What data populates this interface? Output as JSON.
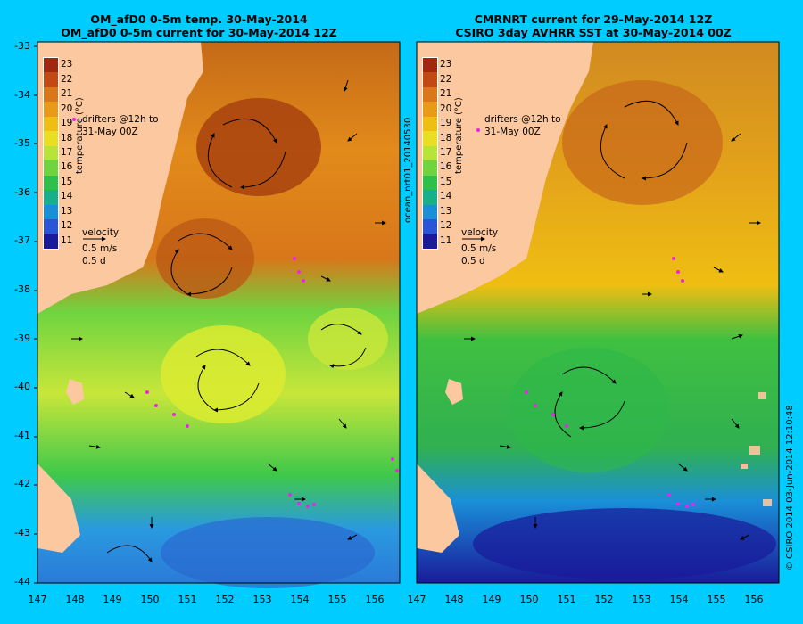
{
  "panels": [
    {
      "title_line1": "OM_afD0 0-5m temp. 30-May-2014",
      "title_line2": "OM_afD0 0-5m current for 30-May-2014 12Z",
      "side_label": ""
    },
    {
      "title_line1": "CMRNRT current for 29-May-2014 12Z",
      "title_line2": "CSIRO 3day AVHRR SST at 30-May-2014 00Z",
      "side_label": "ocean_nrt01_20140530"
    }
  ],
  "y_axis_labels": [
    "-33",
    "-34",
    "-35",
    "-36",
    "-37",
    "-38",
    "-39",
    "-40",
    "-41",
    "-42",
    "-43",
    "-44"
  ],
  "x_axis_labels": [
    "147",
    "148",
    "149",
    "150",
    "151",
    "152",
    "153",
    "154",
    "155",
    "156"
  ],
  "colorbar": {
    "ticks": [
      "23",
      "22",
      "21",
      "20",
      "19",
      "18",
      "17",
      "16",
      "15",
      "14",
      "13",
      "12",
      "11"
    ],
    "label": "temperature (°C)",
    "colors": [
      "#a0280f",
      "#c24a12",
      "#d9771a",
      "#e89a18",
      "#efbe12",
      "#e9de22",
      "#b8e43a",
      "#6fd440",
      "#2fc04c",
      "#18b08a",
      "#1a8fd8",
      "#2a55d6",
      "#1a1a9a"
    ]
  },
  "legend": {
    "drifters_line1": "drifters @12h to",
    "drifters_line2": "31-May 00Z",
    "velocity_label": "velocity",
    "velocity_scale": "0.5 m/s",
    "velocity_time": "0.5 d"
  },
  "credit": "© CSIRO 2014  03-Jun-2014 12:10:48",
  "colors": {
    "background": "#00ccff",
    "land": "#fcc8a0",
    "drifter": "#ee22ee"
  }
}
